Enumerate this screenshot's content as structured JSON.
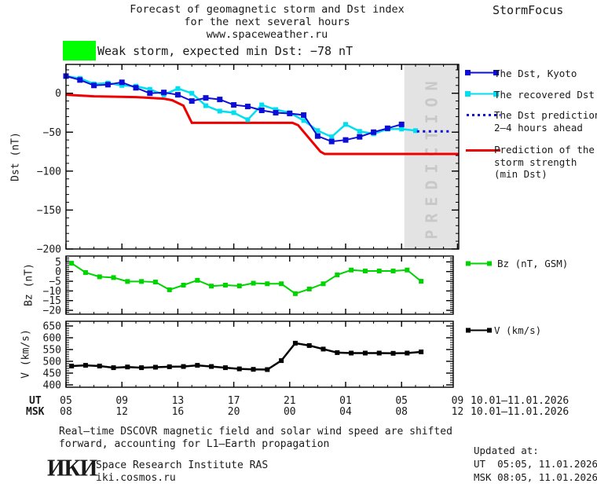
{
  "header": {
    "title_line1": "Forecast of geomagnetic storm and Dst index",
    "title_line2": "for the next several hours",
    "title_line3": "www.spaceweather.ru",
    "brand": "StormFocus"
  },
  "storm_banner": {
    "label": "Weak storm, expected min Dst: −78 nT"
  },
  "colors": {
    "kyoto": "#0d0dd8",
    "recovered": "#00dff0",
    "prediction": "#0d0dd8",
    "strength": "#ee0000",
    "bz": "#00d400",
    "v": "#000000",
    "storm_level": "#00ff00",
    "band": "#e3e3e3",
    "band_text": "#c8c8c8",
    "text": "#1a1a1a"
  },
  "legend": {
    "kyoto": "The Dst, Kyoto",
    "recovered": "The recovered Dst",
    "prediction_line1": "The Dst prediction",
    "prediction_line2": "2–4 hours ahead",
    "strength_line1": "Prediction of the",
    "strength_line2": "storm strength",
    "strength_line3": "(min Dst)",
    "bz": "Bz (nT, GSM)",
    "v": "V (km/s)"
  },
  "xaxis": {
    "ut_label": "UT",
    "msk_label": "MSK",
    "ut_ticks": [
      "05",
      "09",
      "13",
      "17",
      "21",
      "01",
      "05",
      "09"
    ],
    "msk_ticks": [
      "08",
      "12",
      "16",
      "20",
      "00",
      "04",
      "08",
      "12"
    ],
    "tick_hours": [
      0,
      4,
      8,
      12,
      16,
      20,
      24,
      28
    ],
    "ut_date": "10.01–11.01.2026",
    "msk_date": "10.01–11.01.2026"
  },
  "chart_data": [
    {
      "id": "dst",
      "type": "line",
      "ylabel": "Dst (nT)",
      "ylim": [
        -200,
        37
      ],
      "yticks": [
        0,
        -50,
        -100,
        -150,
        -200
      ],
      "ytick_labels": [
        "0",
        "−50",
        "−100",
        "−150",
        "−200"
      ],
      "grid": false,
      "band": {
        "from_hour": 24.2,
        "label": "PREDICTION"
      },
      "series": [
        {
          "name": "Prediction of the storm strength (min Dst)",
          "color": "#ee0000",
          "width": 3,
          "x": [
            0,
            2,
            5,
            7,
            7.6,
            8.4,
            9,
            16.2,
            16.6,
            18.2,
            18.5,
            28.09
          ],
          "y": [
            -2,
            -4,
            -5,
            -7,
            -9,
            -16,
            -38,
            -38,
            -41,
            -75,
            -78,
            -78
          ]
        },
        {
          "name": "The recovered Dst",
          "color": "#00dff0",
          "width": 2.5,
          "marker": 6,
          "x": [
            0,
            1,
            2,
            3,
            4,
            5,
            6,
            7,
            8,
            9,
            10,
            11,
            12,
            13,
            14,
            15,
            16,
            17,
            18,
            19,
            20,
            21,
            22,
            23,
            24,
            25
          ],
          "y": [
            22,
            19,
            12,
            13,
            10,
            9,
            5,
            -2,
            6,
            0,
            -16,
            -23,
            -25,
            -34,
            -15,
            -21,
            -25,
            -35,
            -48,
            -56,
            -40,
            -49,
            -52,
            -46,
            -46,
            -48
          ]
        },
        {
          "name": "The Dst, Kyoto",
          "color": "#0d0dd8",
          "width": 2,
          "marker": 7,
          "x": [
            0,
            1,
            2,
            3,
            4,
            5,
            6,
            7,
            8,
            9,
            10,
            11,
            12,
            13,
            14,
            15,
            16,
            17,
            18,
            19,
            20,
            21,
            22,
            23,
            24
          ],
          "y": [
            22,
            17,
            10,
            11,
            14,
            7,
            0,
            1,
            -2,
            -10,
            -6,
            -8,
            -15,
            -17,
            -22,
            -25,
            -26,
            -28,
            -55,
            -62,
            -60,
            -56,
            -50,
            -45,
            -40
          ]
        },
        {
          "name": "The Dst prediction 2–4 hours ahead",
          "color": "#0d0dd8",
          "width": 3,
          "dotted": true,
          "x": [
            25.1,
            27.4
          ],
          "y": [
            -49,
            -49
          ]
        }
      ]
    },
    {
      "id": "bz",
      "type": "line",
      "ylabel": "Bz (nT)",
      "ylim": [
        -22,
        8
      ],
      "yticks": [
        5,
        0,
        -5,
        -10,
        -15,
        -20
      ],
      "ytick_labels": [
        "5",
        "0",
        "−5",
        "−10",
        "−15",
        "−20"
      ],
      "grid": false,
      "series": [
        {
          "name": "Bz (nT, GSM)",
          "color": "#00d400",
          "width": 2,
          "marker": 6,
          "x": [
            0.4,
            1.4,
            2.4,
            3.4,
            4.4,
            5.4,
            6.4,
            7.4,
            8.4,
            9.4,
            10.4,
            11.4,
            12.4,
            13.4,
            14.4,
            15.4,
            16.4,
            17.4,
            18.4,
            19.4,
            20.4,
            21.4,
            22.4,
            23.4,
            24.4,
            25.4
          ],
          "y": [
            4.3,
            -0.5,
            -2.7,
            -3.1,
            -5.1,
            -5.1,
            -5.4,
            -9.4,
            -7,
            -4.5,
            -7.5,
            -7,
            -7.4,
            -6,
            -6.3,
            -6.3,
            -11.4,
            -9,
            -6.3,
            -1.7,
            0.8,
            0.3,
            0.3,
            0.3,
            0.8,
            -5
          ]
        }
      ]
    },
    {
      "id": "v",
      "type": "line",
      "ylabel": "V (km/s)",
      "ylim": [
        390,
        670
      ],
      "yticks": [
        650,
        600,
        550,
        500,
        450,
        400
      ],
      "ytick_labels": [
        "650",
        "600",
        "550",
        "500",
        "450",
        "400"
      ],
      "grid": false,
      "series": [
        {
          "name": "V (km/s)",
          "color": "#000000",
          "width": 2.5,
          "marker": 6,
          "x": [
            0.4,
            1.4,
            2.4,
            3.4,
            4.4,
            5.4,
            6.4,
            7.4,
            8.4,
            9.4,
            10.4,
            11.4,
            12.4,
            13.4,
            14.4,
            15.4,
            16.4,
            17.4,
            18.4,
            19.4,
            20.4,
            21.4,
            22.4,
            23.4,
            24.4,
            25.4
          ],
          "y": [
            480,
            483,
            480,
            473,
            476,
            473,
            475,
            477,
            478,
            483,
            478,
            473,
            468,
            466,
            465,
            503,
            577,
            567,
            552,
            537,
            535,
            535,
            535,
            534,
            535,
            540
          ]
        }
      ]
    }
  ],
  "footer": {
    "line1": "Real–time DSCOVR magnetic field and solar wind speed are shifted",
    "line2": "forward, accounting for L1–Earth propagation",
    "logo_text": "ИКИ",
    "org_name": "Space Research Institute RAS",
    "org_site": "iki.cosmos.ru",
    "updated_label": "Updated at:",
    "updated_ut": "UT  05:05, 11.01.2026",
    "updated_msk": "MSK 08:05, 11.01.2026"
  }
}
